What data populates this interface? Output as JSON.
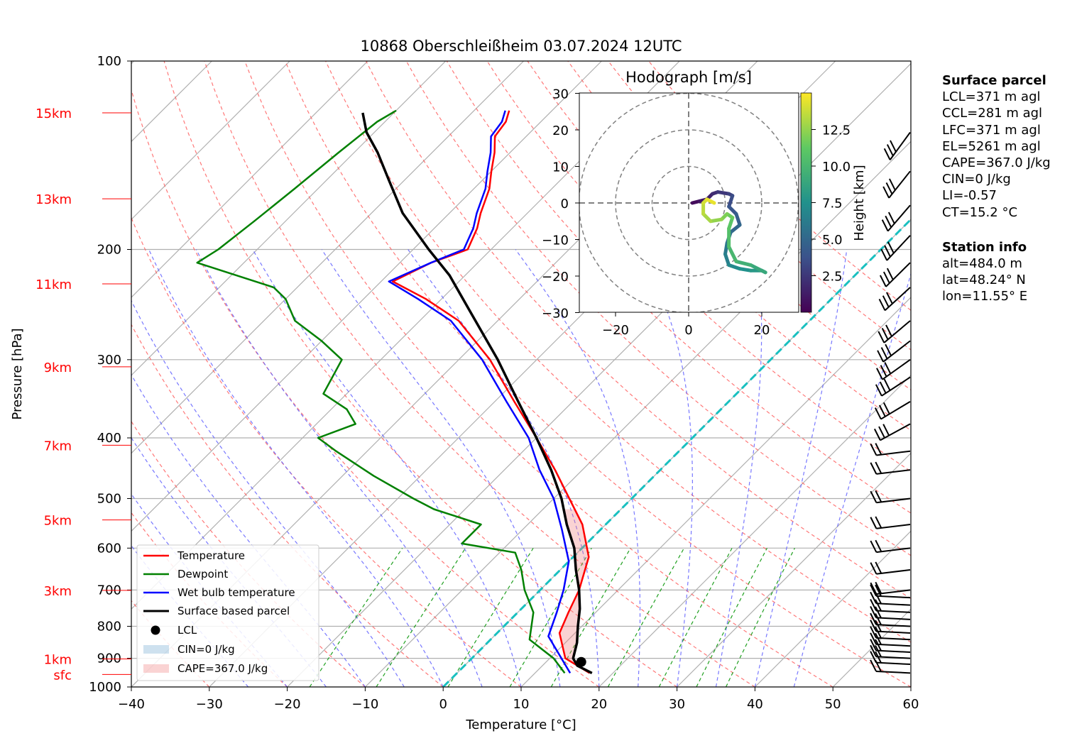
{
  "chart_data": {
    "type": "skew-t log-p diagram",
    "title": "10868 Oberschleißheim 03.07.2024 12UTC",
    "xlabel": "Temperature [°C]",
    "ylabel": "Pressure [hPa]",
    "xlim": [
      -40,
      60
    ],
    "ylim_hpa": [
      1000,
      100
    ],
    "x_ticks": [
      -40,
      -30,
      -20,
      -10,
      0,
      10,
      20,
      30,
      40,
      50,
      60
    ],
    "y_ticks": [
      1000,
      900,
      800,
      700,
      600,
      500,
      400,
      300,
      200,
      100
    ],
    "grid": true,
    "height_labels": [
      {
        "label": "sfc",
        "p": 955
      },
      {
        "label": "1km",
        "p": 902
      },
      {
        "label": "3km",
        "p": 701
      },
      {
        "label": "5km",
        "p": 541
      },
      {
        "label": "7km",
        "p": 411
      },
      {
        "label": "9km",
        "p": 308
      },
      {
        "label": "11km",
        "p": 227
      },
      {
        "label": "13km",
        "p": 166
      },
      {
        "label": "15km",
        "p": 121
      }
    ],
    "series": [
      {
        "name": "Temperature",
        "color": "#ff0000",
        "points": [
          [
            17.0,
            950
          ],
          [
            12.0,
            900
          ],
          [
            8.0,
            820
          ],
          [
            6.5,
            760
          ],
          [
            5.0,
            700
          ],
          [
            2.0,
            620
          ],
          [
            -3.0,
            550
          ],
          [
            -8.0,
            500
          ],
          [
            -13.5,
            450
          ],
          [
            -20.0,
            400
          ],
          [
            -27.5,
            350
          ],
          [
            -36.0,
            300
          ],
          [
            -45.0,
            260
          ],
          [
            -52.0,
            240
          ],
          [
            -58.5,
            225
          ],
          [
            -56.0,
            210
          ],
          [
            -53.0,
            200
          ],
          [
            -54.5,
            185
          ],
          [
            -56.0,
            175
          ],
          [
            -58.0,
            160
          ],
          [
            -60.0,
            150
          ],
          [
            -62.0,
            140
          ],
          [
            -64.0,
            132
          ],
          [
            -64.5,
            125
          ],
          [
            -65.5,
            120
          ]
        ]
      },
      {
        "name": "Dewpoint",
        "color": "#008000",
        "points": [
          [
            13.8,
            950
          ],
          [
            10.5,
            900
          ],
          [
            5.0,
            840
          ],
          [
            2.0,
            760
          ],
          [
            -2.0,
            700
          ],
          [
            -5.0,
            650
          ],
          [
            -8.0,
            610
          ],
          [
            -16.0,
            590
          ],
          [
            -16.0,
            550
          ],
          [
            -24.0,
            520
          ],
          [
            -28.0,
            500
          ],
          [
            -36.0,
            460
          ],
          [
            -44.0,
            420
          ],
          [
            -48.0,
            400
          ],
          [
            -45.0,
            380
          ],
          [
            -48.0,
            360
          ],
          [
            -53.0,
            340
          ],
          [
            -55.0,
            300
          ],
          [
            -60.0,
            280
          ],
          [
            -66.0,
            260
          ],
          [
            -70.0,
            240
          ],
          [
            -73.0,
            230
          ],
          [
            -86.0,
            210
          ],
          [
            -85.0,
            200
          ],
          [
            -84.0,
            180
          ],
          [
            -83.0,
            160
          ],
          [
            -82.0,
            140
          ],
          [
            -81.0,
            125
          ],
          [
            -80.0,
            120
          ]
        ]
      },
      {
        "name": "Wet bulb temperature",
        "color": "#0000ff",
        "points": [
          [
            14.5,
            950
          ],
          [
            11.5,
            900
          ],
          [
            7.0,
            830
          ],
          [
            5.0,
            760
          ],
          [
            3.0,
            700
          ],
          [
            0.0,
            630
          ],
          [
            -5.0,
            560
          ],
          [
            -10.0,
            500
          ],
          [
            -15.5,
            450
          ],
          [
            -21.0,
            400
          ],
          [
            -28.5,
            350
          ],
          [
            -37.0,
            300
          ],
          [
            -46.0,
            260
          ],
          [
            -53.0,
            240
          ],
          [
            -59.0,
            225
          ],
          [
            -56.0,
            210
          ],
          [
            -53.5,
            200
          ],
          [
            -55.0,
            185
          ],
          [
            -56.5,
            175
          ],
          [
            -58.5,
            160
          ],
          [
            -60.5,
            150
          ],
          [
            -62.5,
            140
          ],
          [
            -64.5,
            132
          ],
          [
            -65.0,
            125
          ],
          [
            -66.0,
            120
          ]
        ]
      },
      {
        "name": "Surface based parcel",
        "color": "#000000",
        "points": [
          [
            17.3,
            950
          ],
          [
            14.5,
            925
          ],
          [
            13.0,
            900
          ],
          [
            11.5,
            850
          ],
          [
            9.5,
            800
          ],
          [
            7.5,
            750
          ],
          [
            5.0,
            700
          ],
          [
            2.0,
            650
          ],
          [
            -1.0,
            600
          ],
          [
            -5.0,
            550
          ],
          [
            -9.0,
            500
          ],
          [
            -14.0,
            450
          ],
          [
            -20.0,
            400
          ],
          [
            -27.0,
            350
          ],
          [
            -35.0,
            300
          ],
          [
            -45.0,
            250
          ],
          [
            -52.0,
            220
          ],
          [
            -58.0,
            200
          ],
          [
            -66.0,
            175
          ],
          [
            -72.0,
            155
          ],
          [
            -77.0,
            140
          ],
          [
            -81.0,
            130
          ],
          [
            -84.0,
            121
          ]
        ]
      }
    ],
    "legend": [
      "Temperature",
      "Dewpoint",
      "Wet bulb temperature",
      "Surface based parcel",
      "LCL",
      "CIN=0 J/kg",
      "CAPE=367.0 J/kg"
    ],
    "legend_placement": "lower-left",
    "lcl": {
      "t": 14.5,
      "p": 912
    },
    "cape_shading": "between parcel and temperature, 912 hPa to 520 hPa",
    "wind_barbs_hpa": [
      950,
      920,
      900,
      880,
      860,
      840,
      820,
      800,
      780,
      760,
      740,
      720,
      700,
      650,
      600,
      550,
      500,
      450,
      420,
      380,
      350,
      320,
      300,
      280,
      260,
      230,
      210,
      190,
      170,
      150,
      130
    ],
    "hodograph": {
      "title": "Hodograph [m/s]",
      "xlim": [
        -30,
        30
      ],
      "ylim": [
        -30,
        30
      ],
      "ticks": [
        -20,
        0,
        20
      ],
      "y_ticks": [
        -30,
        -20,
        -10,
        0,
        10,
        20,
        30
      ],
      "rings": [
        10,
        20,
        30
      ],
      "colorbar_label": "Height [km]",
      "colorbar_ticks": [
        2.5,
        5.0,
        7.5,
        10.0,
        12.5
      ],
      "colorbar_range": [
        0,
        15
      ],
      "trace": [
        [
          1,
          0,
          0.5
        ],
        [
          3,
          0.5,
          1
        ],
        [
          5,
          1,
          1.5
        ],
        [
          6.5,
          2.5,
          2
        ],
        [
          8,
          3,
          2.5
        ],
        [
          11,
          2.5,
          3
        ],
        [
          12,
          2,
          3.5
        ],
        [
          11,
          -1,
          4
        ],
        [
          13,
          -3,
          4.5
        ],
        [
          14,
          -6,
          5
        ],
        [
          11.5,
          -8,
          5.5
        ],
        [
          10.5,
          -11,
          6
        ],
        [
          10,
          -14,
          6.5
        ],
        [
          11,
          -17,
          7
        ],
        [
          14,
          -18,
          7.5
        ],
        [
          17,
          -18.5,
          8
        ],
        [
          20,
          -18.5,
          8.5
        ],
        [
          21,
          -19,
          9
        ],
        [
          17,
          -17,
          9.5
        ],
        [
          13,
          -16,
          10
        ],
        [
          11,
          -12,
          10.5
        ],
        [
          11,
          -7,
          11
        ],
        [
          12,
          -4,
          11.5
        ],
        [
          10.5,
          -3,
          12
        ],
        [
          9,
          -4.5,
          12.5
        ],
        [
          6,
          -5,
          13
        ],
        [
          4,
          -3,
          13.5
        ],
        [
          4,
          0,
          14
        ],
        [
          5,
          1,
          14.5
        ],
        [
          7,
          0,
          14.8
        ]
      ]
    },
    "sidebar": {
      "surface_header": "Surface parcel",
      "surface": [
        "LCL=371 m agl",
        "CCL=281 m agl",
        "LFC=371 m agl",
        "EL=5261 m agl",
        "CAPE=367.0 J/kg",
        "CIN=0 J/kg",
        "LI=-0.57",
        "CT=15.2 °C"
      ],
      "station_header": "Station info",
      "station": [
        "alt=484.0 m",
        "lat=48.24° N",
        "lon=11.55° E"
      ]
    }
  }
}
